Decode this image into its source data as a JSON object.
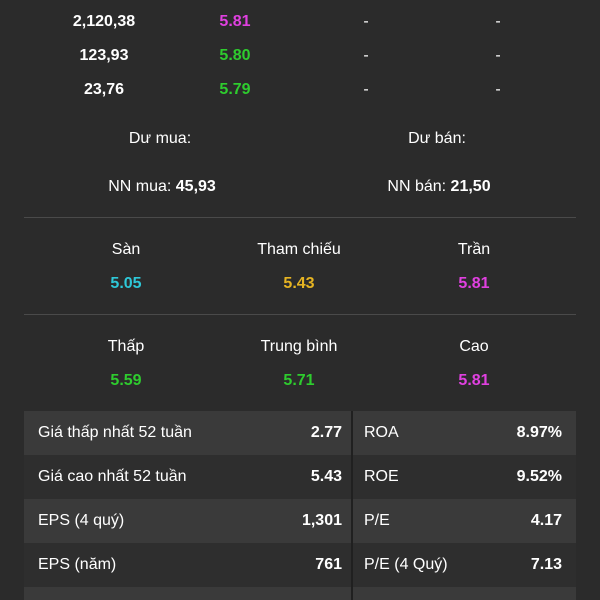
{
  "order_book": [
    {
      "volume": "2,120,38",
      "price": "5.81",
      "price_color": "#e040e0",
      "dash1": "-",
      "dash2": "-"
    },
    {
      "volume": "123,93",
      "price": "5.80",
      "price_color": "#2ecc2e",
      "dash1": "-",
      "dash2": "-"
    },
    {
      "volume": "23,76",
      "price": "5.79",
      "price_color": "#2ecc2e",
      "dash1": "-",
      "dash2": "-"
    }
  ],
  "surplus": {
    "buy_label": "Dư mua:",
    "sell_label": "Dư bán:"
  },
  "foreign": {
    "buy_label": "NN mua:",
    "buy_value": "45,93",
    "sell_label": "NN bán:",
    "sell_value": "21,50"
  },
  "reference": {
    "floor_label": "Sàn",
    "floor_value": "5.05",
    "ref_label": "Tham chiếu",
    "ref_value": "5.43",
    "ceiling_label": "Trần",
    "ceiling_value": "5.81"
  },
  "range": {
    "low_label": "Thấp",
    "low_value": "5.59",
    "avg_label": "Trung bình",
    "avg_value": "5.71",
    "high_label": "Cao",
    "high_value": "5.81"
  },
  "stats": [
    {
      "left_label": "Giá thấp nhất 52 tuần",
      "left_value": "2.77",
      "right_label": "ROA",
      "right_value": "8.97%"
    },
    {
      "left_label": "Giá cao nhất 52 tuần",
      "left_value": "5.43",
      "right_label": "ROE",
      "right_value": "9.52%"
    },
    {
      "left_label": "EPS (4 quý)",
      "left_value": "1,301",
      "right_label": "P/E",
      "right_value": "4.17"
    },
    {
      "left_label": "EPS (năm)",
      "left_value": "761",
      "right_label": "P/E (4 Quý)",
      "right_value": "7.13"
    }
  ],
  "colors": {
    "background": "#2b2b2b",
    "green": "#2ecc2e",
    "purple": "#e040e0",
    "cyan": "#2ec8d8",
    "yellow": "#e6b422"
  }
}
